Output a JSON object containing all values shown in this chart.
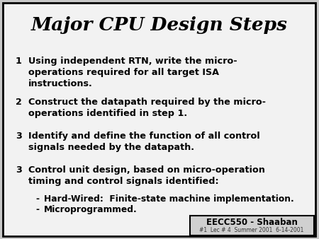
{
  "title": "Major CPU Design Steps",
  "bg_color": "#f2f2f2",
  "slide_bg": "#c8c8c8",
  "border_color": "#000000",
  "items": [
    {
      "number": "1",
      "text": "Using independent RTN, write the micro-\noperations required for all target ISA\ninstructions.",
      "bold": true,
      "indent": 0
    },
    {
      "number": "2",
      "text": "Construct the datapath required by the micro-\noperations identified in step 1.",
      "bold": true,
      "indent": 0
    },
    {
      "number": "3",
      "text": "Identify and define the function of all control\nsignals needed by the datapath.",
      "bold": true,
      "indent": 0
    },
    {
      "number": "3",
      "text": "Control unit design, based on micro-operation\ntiming and control signals identified:",
      "bold": true,
      "indent": 0
    },
    {
      "number": "-",
      "text": "Hard-Wired:  Finite-state machine implementation.",
      "bold": true,
      "indent": 1
    },
    {
      "number": "-",
      "text": "Microprogrammed.",
      "bold": true,
      "indent": 1
    }
  ],
  "footer_box_text": "EECC550 - Shaaban",
  "footer_sub_text": "#1  Lec # 4  Summer 2001  6-14-2001",
  "title_fontsize": 19,
  "item_fontsize": 9.2,
  "sub_item_fontsize": 8.8,
  "footer_fontsize": 8.5,
  "footer_sub_fontsize": 5.5
}
